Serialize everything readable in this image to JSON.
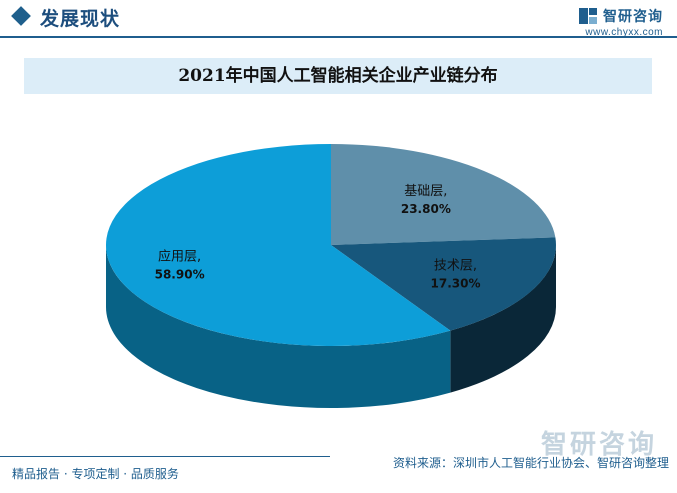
{
  "header": {
    "section_title": "发展现状",
    "logo_name": "智研咨询",
    "logo_url": "www.chyxx.com"
  },
  "watermark": {
    "text": "智研咨询"
  },
  "chart_data": {
    "type": "pie",
    "title": "2021年中国人工智能相关企业产业链分布",
    "slices": [
      {
        "name": "基础层",
        "value": 23.8,
        "value_label": "23.80%",
        "color": "#5f8faa"
      },
      {
        "name": "技术层",
        "value": 17.3,
        "value_label": "17.30%",
        "color": "#17577c"
      },
      {
        "name": "应用层",
        "value": 58.9,
        "value_label": "58.90%",
        "color": "#0d9ed8"
      }
    ],
    "legend": "none",
    "data_labels": "inside"
  },
  "footer": {
    "left_text": "精品报告 · 专项定制 · 品质服务",
    "source_text": "资料来源：深圳市人工智能行业协会、智研咨询整理"
  }
}
